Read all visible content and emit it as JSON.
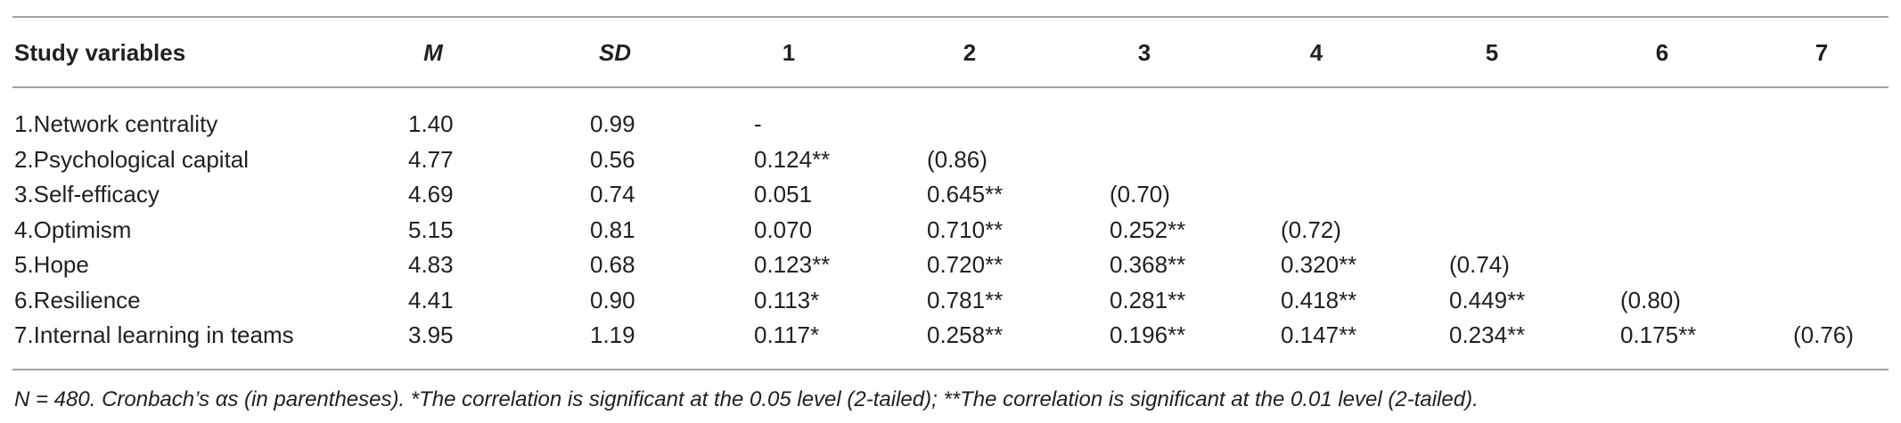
{
  "table": {
    "header": [
      "Study variables",
      "M",
      "SD",
      "1",
      "2",
      "3",
      "4",
      "5",
      "6",
      "7"
    ],
    "rows": [
      [
        "1.Network centrality",
        "1.40",
        "0.99",
        "-"
      ],
      [
        "2.Psychological capital",
        "4.77",
        "0.56",
        "0.124**",
        "(0.86)"
      ],
      [
        "3.Self-efficacy",
        "4.69",
        "0.74",
        "0.051",
        "0.645**",
        "(0.70)"
      ],
      [
        "4.Optimism",
        "5.15",
        "0.81",
        "0.070",
        "0.710**",
        "0.252**",
        "(0.72)"
      ],
      [
        "5.Hope",
        "4.83",
        "0.68",
        "0.123**",
        "0.720**",
        "0.368**",
        "0.320**",
        "(0.74)"
      ],
      [
        "6.Resilience",
        "4.41",
        "0.90",
        "0.113*",
        "0.781**",
        "0.281**",
        "0.418**",
        "0.449**",
        "(0.80)"
      ],
      [
        "7.Internal learning in teams",
        "3.95",
        "1.19",
        "0.117*",
        "0.258**",
        "0.196**",
        "0.147**",
        "0.234**",
        "0.175**",
        "(0.76)"
      ]
    ],
    "footnote": "N = 480. Cronbach’s αs (in parentheses). *The correlation is significant at the 0.05 level (2-tailed); **The correlation is significant at the 0.01 level (2-tailed)."
  }
}
